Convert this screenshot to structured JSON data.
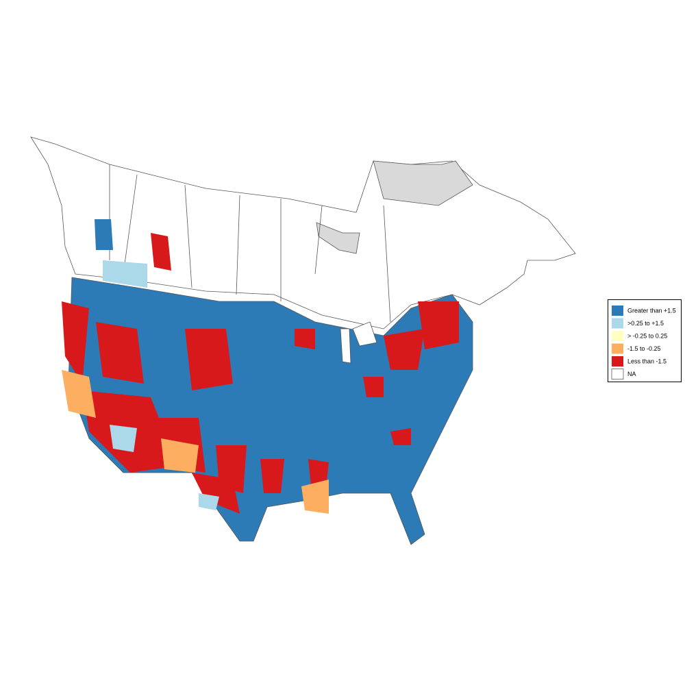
{
  "legend": {
    "items": [
      {
        "label": "Greater than +1.5",
        "color": "#2c7bb6"
      },
      {
        "label": ">0.25 to +1.5",
        "color": "#abd9e9"
      },
      {
        "label": "> -0.25 to 0.25",
        "color": "#ffffbf"
      },
      {
        "label": "-1.5 to -0.25",
        "color": "#fdae61"
      },
      {
        "label": "Less than -1.5",
        "color": "#d7191c"
      },
      {
        "label": "NA",
        "color": "#ffffff"
      }
    ]
  }
}
